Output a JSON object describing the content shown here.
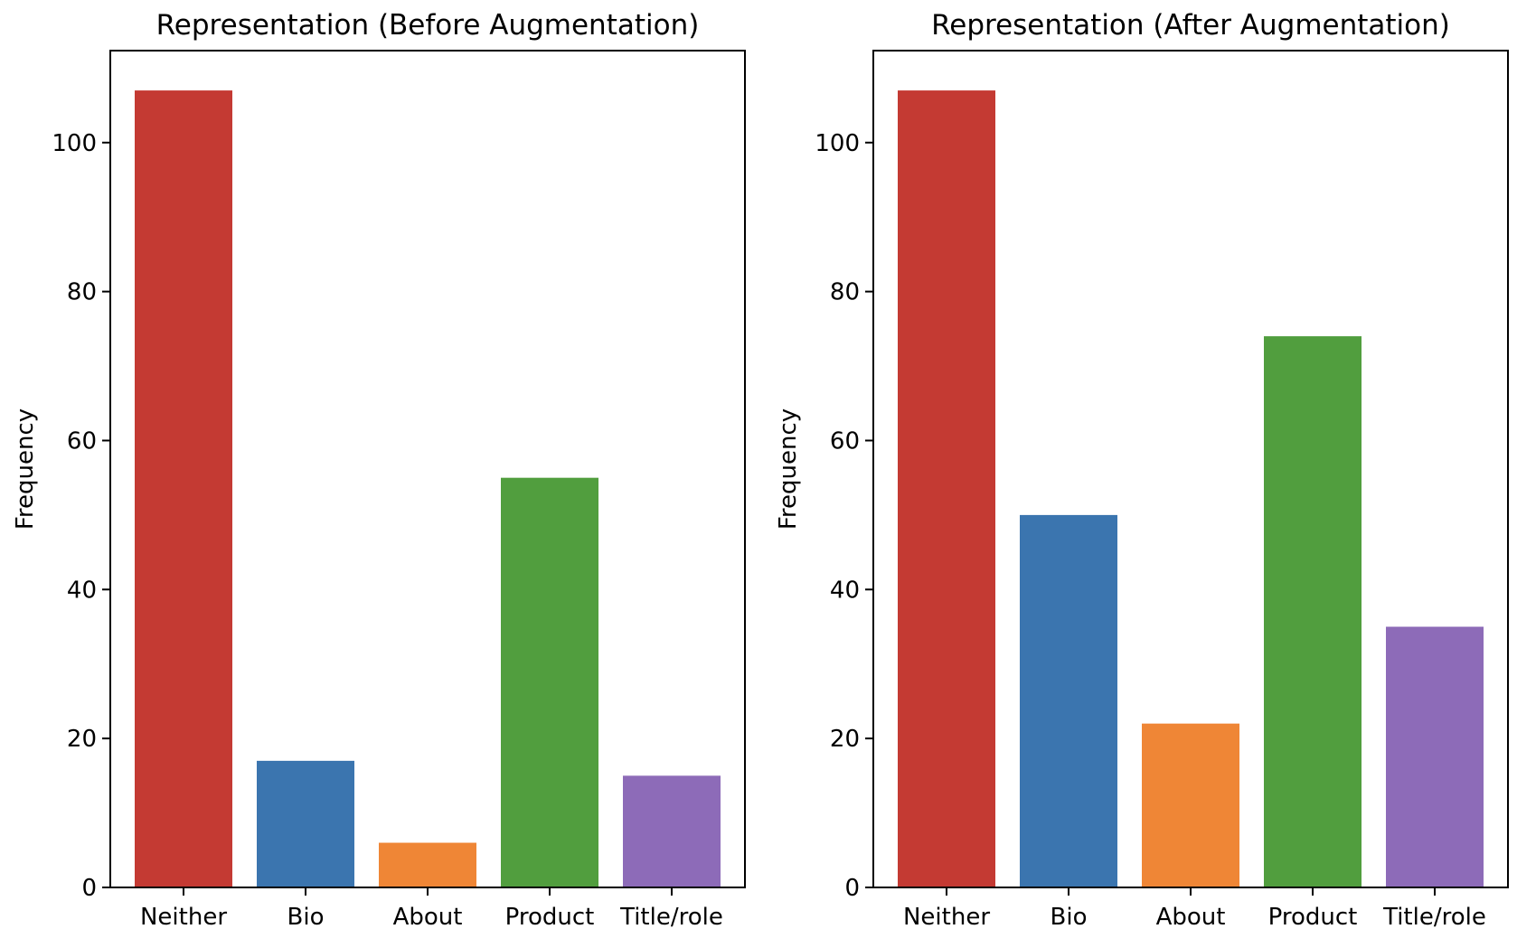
{
  "chart_data": [
    {
      "type": "bar",
      "title": "Representation (Before Augmentation)",
      "xlabel": "",
      "ylabel": "Frequency",
      "categories": [
        "Neither",
        "Bio",
        "About",
        "Product",
        "Title/role"
      ],
      "values": [
        107,
        17,
        6,
        55,
        15
      ],
      "colors": [
        "#c43a33",
        "#3b75af",
        "#ef8636",
        "#519e3e",
        "#8d6bb8"
      ],
      "ylim": [
        0,
        112.35
      ],
      "yticks": [
        0,
        20,
        40,
        60,
        80,
        100
      ],
      "grid": false,
      "legend": "none"
    },
    {
      "type": "bar",
      "title": "Representation (After Augmentation)",
      "xlabel": "",
      "ylabel": "Frequency",
      "categories": [
        "Neither",
        "Bio",
        "About",
        "Product",
        "Title/role"
      ],
      "values": [
        107,
        50,
        22,
        74,
        35
      ],
      "colors": [
        "#c43a33",
        "#3b75af",
        "#ef8636",
        "#519e3e",
        "#8d6bb8"
      ],
      "ylim": [
        0,
        112.35
      ],
      "yticks": [
        0,
        20,
        40,
        60,
        80,
        100
      ],
      "grid": false,
      "legend": "none"
    }
  ]
}
